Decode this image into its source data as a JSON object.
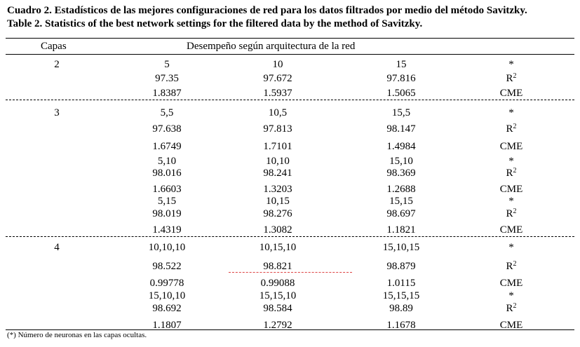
{
  "caption": {
    "line1": "Cuadro 2. Estadísticos de las mejores configuraciones de red para los datos filtrados por medio del método Savitzky.",
    "line2": "Table 2. Statistics of the best network settings for the filtered data by the method of Savitzky."
  },
  "header": {
    "col1": "Capas",
    "col2": "Desempeño según arquitectura de la red"
  },
  "groups": [
    {
      "capas": "2",
      "rows": [
        [
          "5",
          "10",
          "15",
          "*"
        ],
        [
          "97.35",
          "97.672",
          "97.816",
          "R2"
        ],
        [
          "1.8387",
          "1.5937",
          "1.5065",
          "CME"
        ]
      ]
    },
    {
      "capas": "3",
      "rows": [
        [
          "5,5",
          "10,5",
          "15,5",
          "*"
        ],
        [
          "97.638",
          "97.813",
          "98.147",
          "R2"
        ],
        [
          "1.6749",
          "1.7101",
          "1.4984",
          "CME"
        ],
        [
          "5,10",
          "10,10",
          "15,10",
          "*"
        ],
        [
          "98.016",
          "98.241",
          "98.369",
          "R2"
        ],
        [
          "1.6603",
          "1.3203",
          "1.2688",
          "CME"
        ],
        [
          "5,15",
          "10,15",
          "15,15",
          "*"
        ],
        [
          "98.019",
          "98.276",
          "98.697",
          "R2"
        ],
        [
          "1.4319",
          "1.3082",
          "1.1821",
          "CME"
        ]
      ]
    },
    {
      "capas": "4",
      "rows": [
        [
          "10,10,10",
          "10,15,10",
          "15,10,15",
          "*"
        ],
        [
          "98.522",
          "98.821",
          "98.879",
          "R2"
        ],
        [
          "0.99778",
          "0.99088",
          "1.0115",
          "CME"
        ],
        [
          "15,10,10",
          "15,15,10",
          "15,15,15",
          "*"
        ],
        [
          "98.692",
          "98.584",
          "98.89",
          "R2"
        ],
        [
          "1.1807",
          "1.2792",
          "1.1678",
          "CME"
        ]
      ]
    }
  ],
  "footnote": "(*) Número de neuronas en las capas ocultas."
}
